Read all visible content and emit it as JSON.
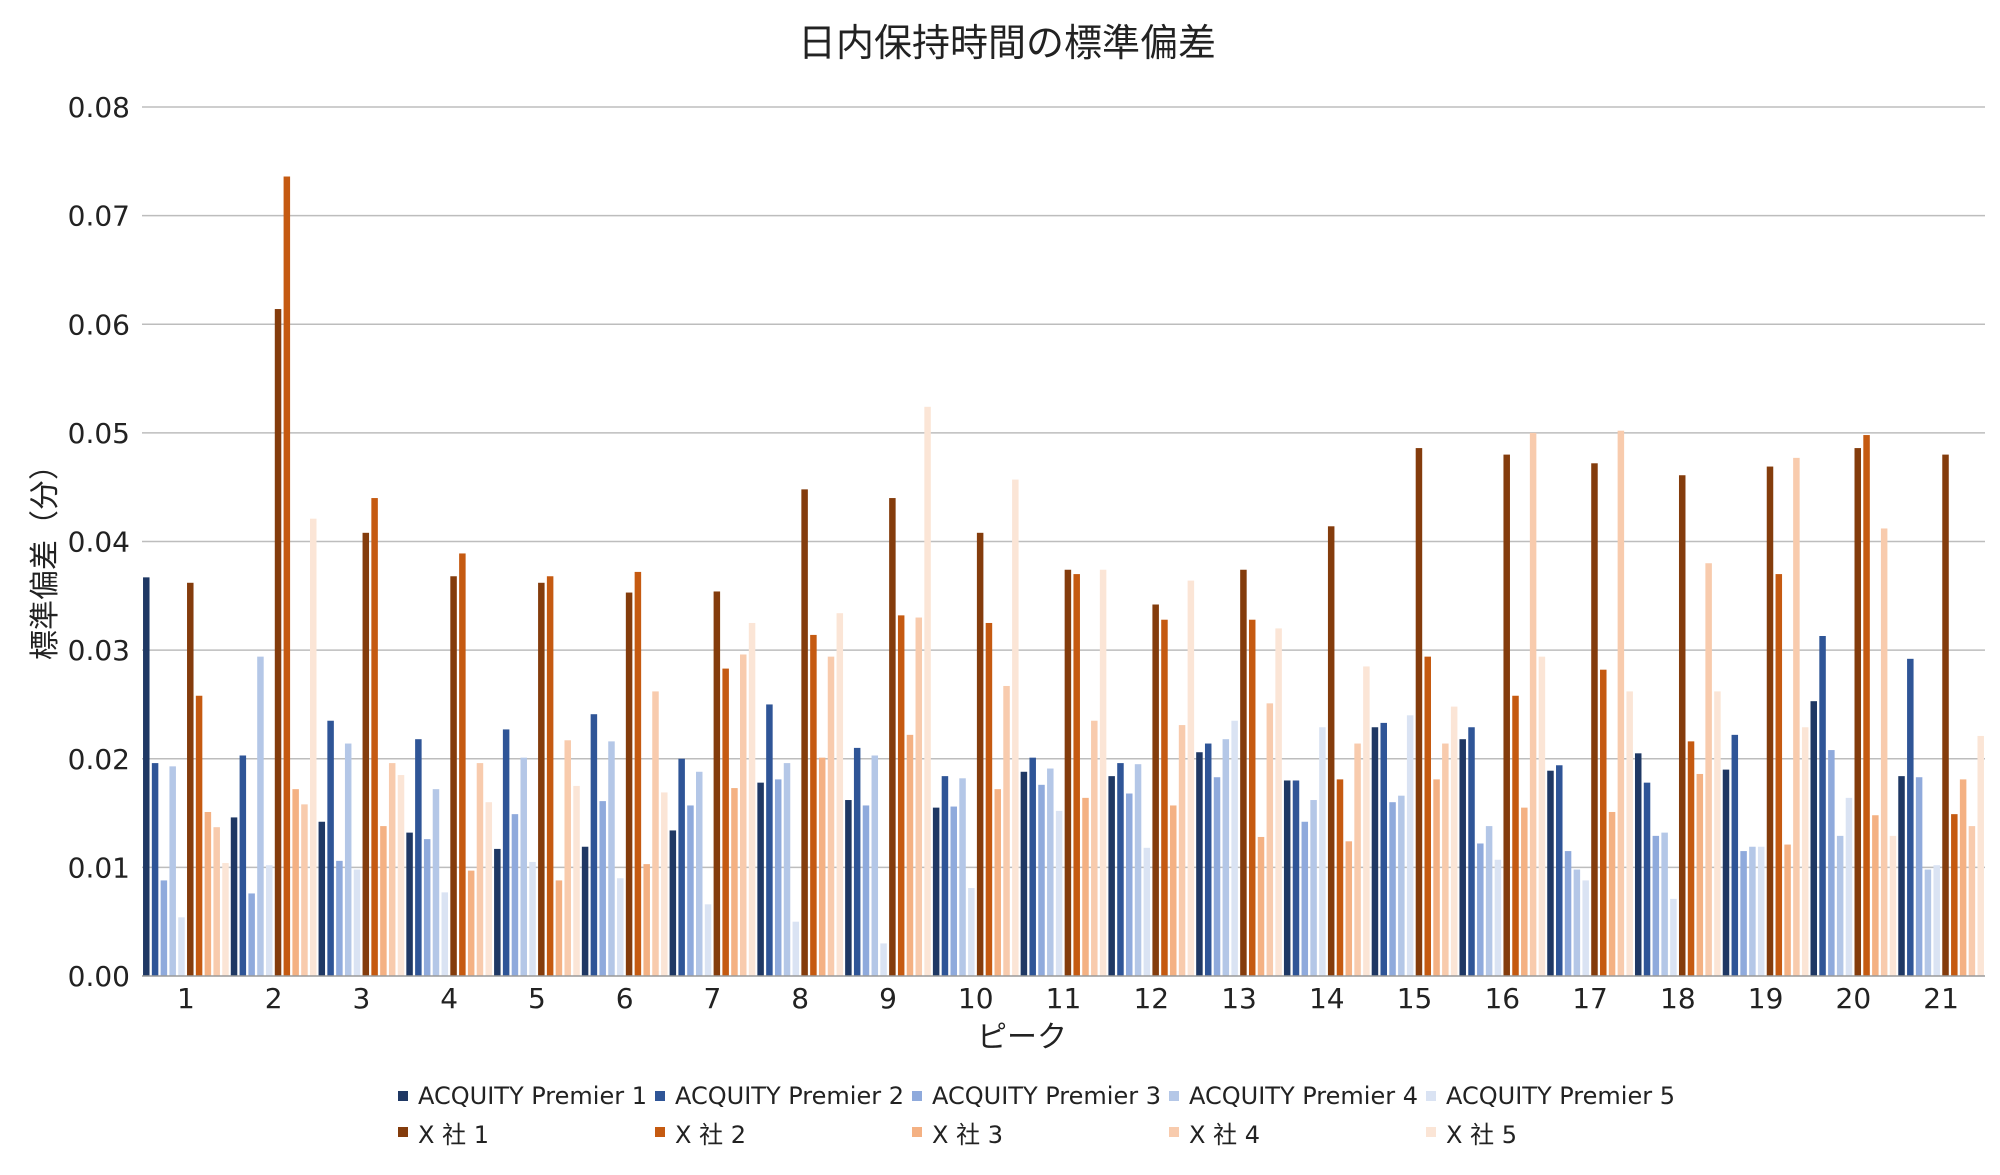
{
  "chart_data": {
    "type": "bar",
    "title": "日内保持時間の標準偏差",
    "xlabel": "ピーク",
    "ylabel": "標準偏差（分）",
    "ylim": [
      0,
      0.08
    ],
    "yticks": [
      "0.00",
      "0.01",
      "0.02",
      "0.03",
      "0.04",
      "0.05",
      "0.06",
      "0.07",
      "0.08"
    ],
    "grid": true,
    "legend_position": "bottom",
    "categories": [
      "1",
      "2",
      "3",
      "4",
      "5",
      "6",
      "7",
      "8",
      "9",
      "10",
      "11",
      "12",
      "13",
      "14",
      "15",
      "16",
      "17",
      "18",
      "19",
      "20",
      "21"
    ],
    "series": [
      {
        "name": "ACQUITY Premier 1",
        "color": "#1f3864",
        "values": [
          0.0367,
          0.0146,
          0.0142,
          0.0132,
          0.0117,
          0.0119,
          0.0134,
          0.0178,
          0.0162,
          0.0155,
          0.0188,
          0.0184,
          0.0206,
          0.018,
          0.0229,
          0.0218,
          0.0189,
          0.0205,
          0.019,
          0.0253,
          0.0184
        ]
      },
      {
        "name": "ACQUITY Premier 2",
        "color": "#2f5597",
        "values": [
          0.0196,
          0.0203,
          0.0235,
          0.0218,
          0.0227,
          0.0241,
          0.02,
          0.025,
          0.021,
          0.0184,
          0.0201,
          0.0196,
          0.0214,
          0.018,
          0.0233,
          0.0229,
          0.0194,
          0.0178,
          0.0222,
          0.0313,
          0.0292
        ]
      },
      {
        "name": "ACQUITY Premier 3",
        "color": "#8faadc",
        "values": [
          0.0088,
          0.0076,
          0.0106,
          0.0126,
          0.0149,
          0.0161,
          0.0157,
          0.0181,
          0.0157,
          0.0156,
          0.0176,
          0.0168,
          0.0183,
          0.0142,
          0.016,
          0.0122,
          0.0115,
          0.0129,
          0.0115,
          0.0208,
          0.0183
        ]
      },
      {
        "name": "ACQUITY Premier 4",
        "color": "#b4c7e7",
        "values": [
          0.0193,
          0.0294,
          0.0214,
          0.0172,
          0.0201,
          0.0216,
          0.0188,
          0.0196,
          0.0203,
          0.0182,
          0.0191,
          0.0195,
          0.0218,
          0.0162,
          0.0166,
          0.0138,
          0.0098,
          0.0132,
          0.0119,
          0.0129,
          0.0098
        ]
      },
      {
        "name": "ACQUITY Premier 5",
        "color": "#dae3f3",
        "values": [
          0.0054,
          0.0102,
          0.0098,
          0.0077,
          0.0105,
          0.009,
          0.0066,
          0.005,
          0.003,
          0.0081,
          0.0152,
          0.0118,
          0.0235,
          0.0229,
          0.024,
          0.0107,
          0.0088,
          0.0071,
          0.0119,
          0.0164,
          0.0102
        ]
      },
      {
        "name": "X 社 1",
        "color": "#843c0c",
        "values": [
          0.0362,
          0.0614,
          0.0408,
          0.0368,
          0.0362,
          0.0353,
          0.0354,
          0.0448,
          0.044,
          0.0408,
          0.0374,
          0.0342,
          0.0374,
          0.0414,
          0.0486,
          0.048,
          0.0472,
          0.0461,
          0.0469,
          0.0486,
          0.048
        ]
      },
      {
        "name": "X 社 2",
        "color": "#c55a11",
        "values": [
          0.0258,
          0.0736,
          0.044,
          0.0389,
          0.0368,
          0.0372,
          0.0283,
          0.0314,
          0.0332,
          0.0325,
          0.037,
          0.0328,
          0.0328,
          0.0181,
          0.0294,
          0.0258,
          0.0282,
          0.0216,
          0.037,
          0.0498,
          0.0149
        ]
      },
      {
        "name": "X 社 3",
        "color": "#f4b183",
        "values": [
          0.0151,
          0.0172,
          0.0138,
          0.0097,
          0.0088,
          0.0103,
          0.0173,
          0.0201,
          0.0222,
          0.0172,
          0.0164,
          0.0157,
          0.0128,
          0.0124,
          0.0181,
          0.0155,
          0.0151,
          0.0186,
          0.0121,
          0.0148,
          0.0181
        ]
      },
      {
        "name": "X 社 4",
        "color": "#f8cbad",
        "values": [
          0.0137,
          0.0158,
          0.0196,
          0.0196,
          0.0217,
          0.0262,
          0.0296,
          0.0294,
          0.033,
          0.0267,
          0.0235,
          0.0231,
          0.0251,
          0.0214,
          0.0214,
          0.05,
          0.0502,
          0.038,
          0.0477,
          0.0412,
          0.0138
        ]
      },
      {
        "name": "X 社 5",
        "color": "#fbe5d6",
        "values": [
          0.0104,
          0.0421,
          0.0185,
          0.016,
          0.0175,
          0.0169,
          0.0325,
          0.0334,
          0.0524,
          0.0457,
          0.0374,
          0.0364,
          0.032,
          0.0285,
          0.0248,
          0.0294,
          0.0262,
          0.0262,
          0.0229,
          0.0129,
          0.0221
        ]
      }
    ]
  }
}
